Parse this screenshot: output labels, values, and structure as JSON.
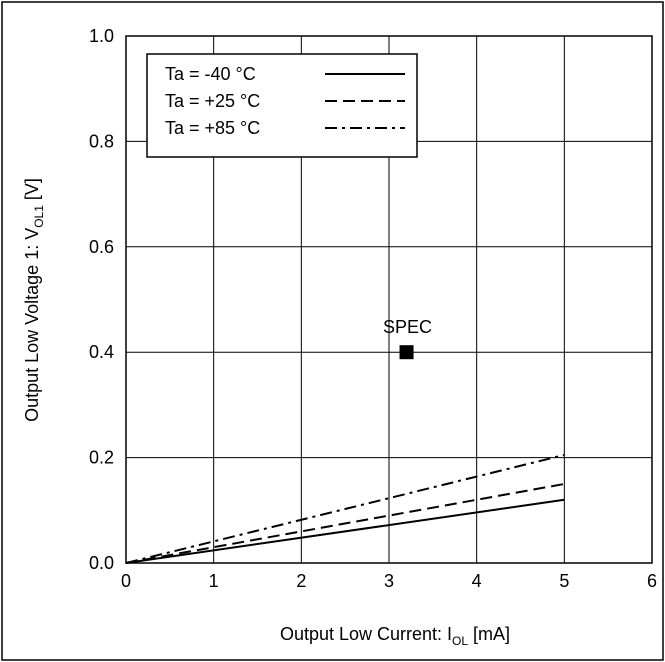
{
  "chart_data": {
    "type": "line",
    "xlabel": {
      "main": "Output Low Current: I",
      "sub": "OL",
      "unit": " [mA]"
    },
    "ylabel": {
      "main": "Output Low Voltage 1: V",
      "sub": "OL1",
      "unit": " [V]"
    },
    "xlim": [
      0,
      6
    ],
    "ylim": [
      0,
      1.0
    ],
    "x_ticks": [
      "0",
      "1",
      "2",
      "3",
      "4",
      "5",
      "6"
    ],
    "y_ticks": [
      "0.0",
      "0.2",
      "0.4",
      "0.6",
      "0.8",
      "1.0"
    ],
    "grid": true,
    "legend_position": "top-left",
    "series": [
      {
        "name": "Ta = -40 °C",
        "style": "solid",
        "x": [
          0,
          5
        ],
        "y": [
          0,
          0.12
        ]
      },
      {
        "name": "Ta = +25 °C",
        "style": "dashed",
        "x": [
          0,
          5
        ],
        "y": [
          0,
          0.15
        ]
      },
      {
        "name": "Ta = +85 °C",
        "style": "dashdot",
        "x": [
          0,
          5
        ],
        "y": [
          0,
          0.205
        ]
      }
    ],
    "annotations": [
      {
        "label": "SPEC",
        "x": 3.2,
        "y": 0.4,
        "marker": "square"
      }
    ]
  }
}
